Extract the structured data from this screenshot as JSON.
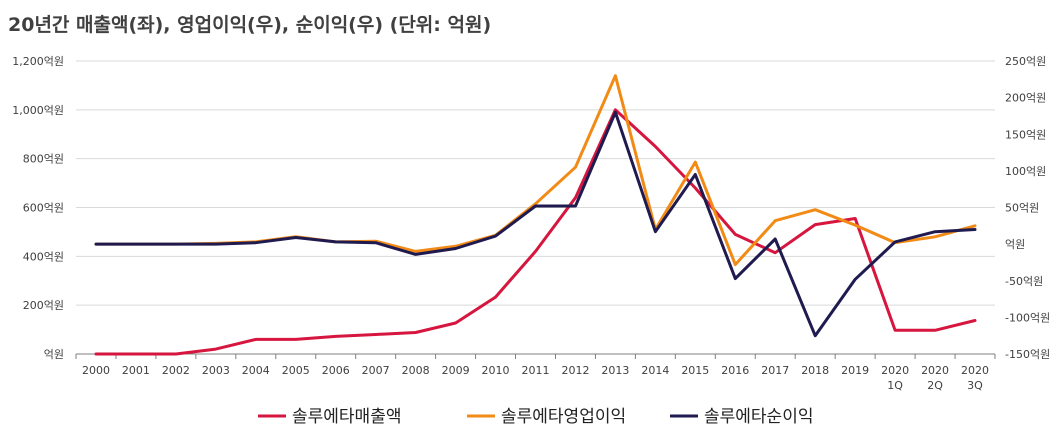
{
  "chart_data": {
    "type": "line",
    "title": "20년간 매출액(좌), 영업이익(우), 순이익(우) (단위: 억원)",
    "categories": [
      [
        "2000"
      ],
      [
        "2001"
      ],
      [
        "2002"
      ],
      [
        "2003"
      ],
      [
        "2004"
      ],
      [
        "2005"
      ],
      [
        "2006"
      ],
      [
        "2007"
      ],
      [
        "2008"
      ],
      [
        "2009"
      ],
      [
        "2010"
      ],
      [
        "2011"
      ],
      [
        "2012"
      ],
      [
        "2013"
      ],
      [
        "2014"
      ],
      [
        "2015"
      ],
      [
        "2016"
      ],
      [
        "2017"
      ],
      [
        "2018"
      ],
      [
        "2019"
      ],
      [
        "2020",
        "1Q"
      ],
      [
        "2020",
        "2Q"
      ],
      [
        "2020",
        "3Q"
      ]
    ],
    "y_left": {
      "min": 0,
      "max": 1200,
      "step": 200,
      "tick_labels": [
        "억원",
        "200억원",
        "400억원",
        "600억원",
        "800억원",
        "1,000억원",
        "1,200억원"
      ]
    },
    "y_right": {
      "min": -150,
      "max": 250,
      "step": 50,
      "tick_labels": [
        "-150억원",
        "-100억원",
        "-50억원",
        "억원",
        "50억원",
        "100억원",
        "150억원",
        "200억원",
        "250억원"
      ]
    },
    "grid": "horizontal",
    "legend_position": "bottom",
    "series": [
      {
        "name": "솔루에타매출액",
        "axis": "left",
        "color": "#d6163f",
        "values": [
          0,
          0,
          0,
          20,
          60,
          60,
          72,
          80,
          88,
          127,
          233,
          420,
          640,
          1000,
          850,
          680,
          490,
          415,
          530,
          555,
          97,
          97,
          137
        ]
      },
      {
        "name": "솔루에타영업이익",
        "axis": "right",
        "color": "#f28a16",
        "values": [
          0,
          0,
          0,
          1,
          3,
          10,
          3,
          4,
          -10,
          -3,
          12,
          55,
          105,
          230,
          20,
          112,
          -28,
          32,
          47,
          26,
          2,
          10,
          25
        ]
      },
      {
        "name": "솔루에타순이익",
        "axis": "right",
        "color": "#1f1a4f",
        "values": [
          0,
          0,
          0,
          0,
          2,
          9,
          3,
          2,
          -14,
          -6,
          11,
          52,
          52,
          180,
          17,
          95,
          -47,
          7,
          -125,
          -48,
          3,
          17,
          20
        ]
      }
    ]
  }
}
